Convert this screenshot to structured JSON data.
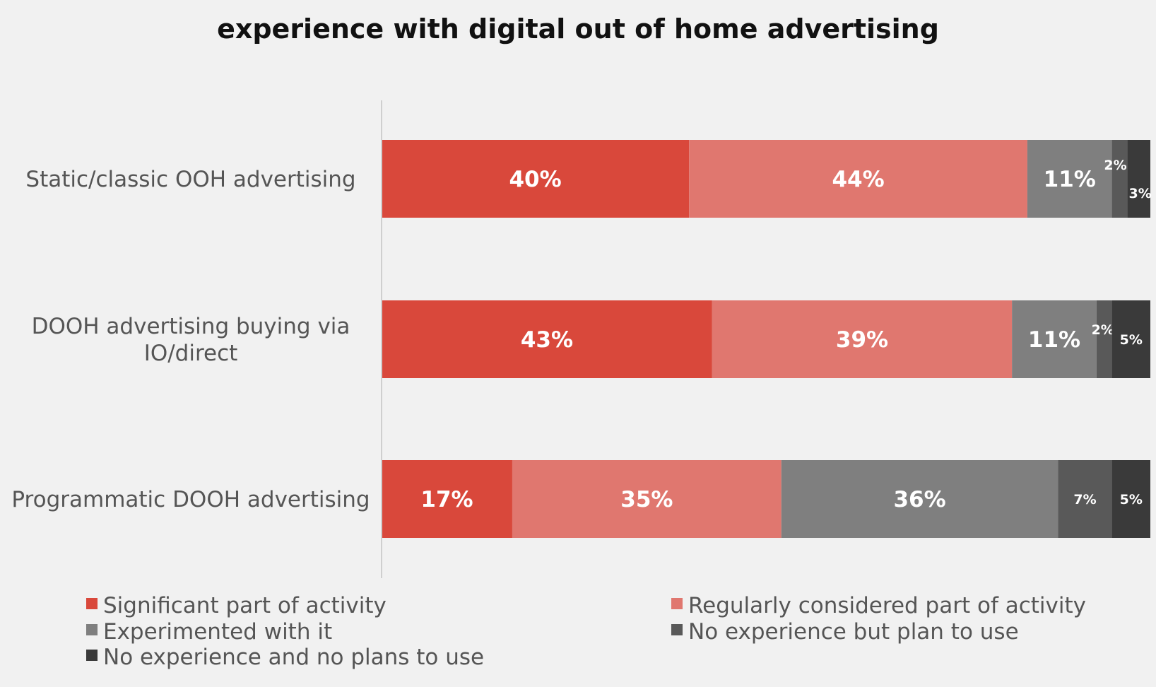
{
  "colors": {
    "background": "#f1f1f1",
    "axis": "#cfcfcf"
  },
  "chart_data": {
    "type": "bar",
    "orientation": "horizontal",
    "stacked": true,
    "title": "experience with digital out of home advertising",
    "categories": [
      "Static/classic OOH advertising",
      "DOOH advertising buying via IO/direct",
      "Programmatic DOOH advertising"
    ],
    "category_lines": [
      [
        "Static/classic OOH advertising"
      ],
      [
        "DOOH advertising buying via",
        "IO/direct"
      ],
      [
        "Programmatic DOOH advertising"
      ]
    ],
    "series": [
      {
        "name": "Significant part of activity",
        "color": "#d9483b",
        "values": [
          40,
          43,
          17
        ],
        "labels": [
          "40%",
          "43%",
          "17%"
        ]
      },
      {
        "name": "Regularly considered part of activity",
        "color": "#e0776f",
        "values": [
          44,
          39,
          35
        ],
        "labels": [
          "44%",
          "39%",
          "35%"
        ]
      },
      {
        "name": "Experimented with it",
        "color": "#7f7f7f",
        "values": [
          11,
          11,
          36
        ],
        "labels": [
          "11%",
          "11%",
          "36%"
        ]
      },
      {
        "name": "No experience but plan to use",
        "color": "#595959",
        "values": [
          2,
          2,
          7
        ],
        "labels": [
          "2%",
          "2%",
          "7%"
        ]
      },
      {
        "name": "No experience and no plans to use",
        "color": "#3a3a3a",
        "values": [
          3,
          5,
          5
        ],
        "labels": [
          "3%",
          "5%",
          "5%"
        ]
      }
    ],
    "xlim": [
      0,
      100
    ],
    "unit": "%",
    "grid": false,
    "legend_position": "bottom"
  }
}
